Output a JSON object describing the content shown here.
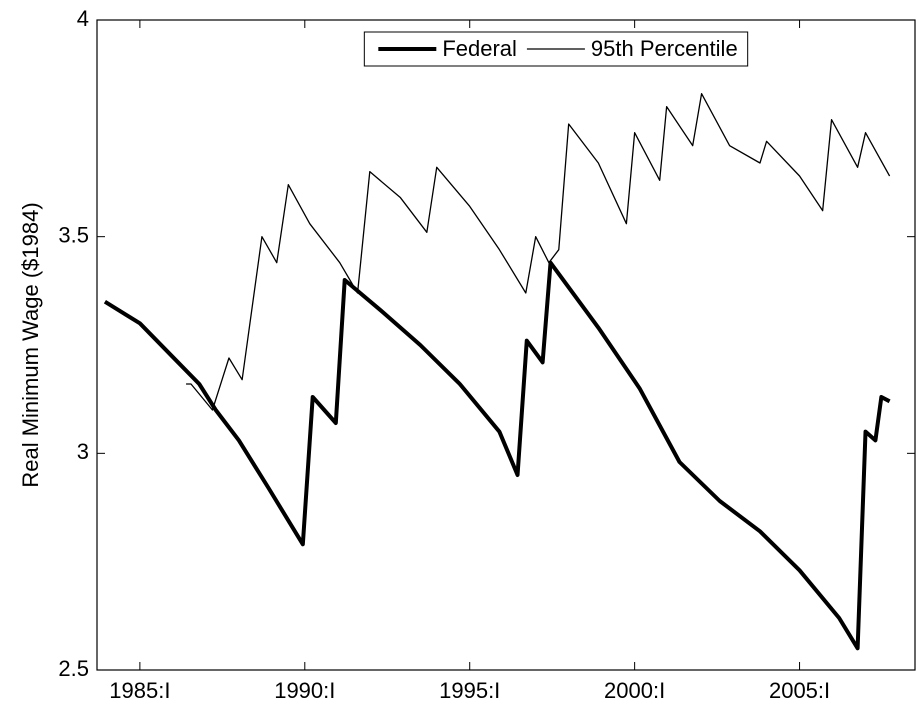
{
  "chart_data": {
    "type": "line",
    "y_label": "Real Minimum Wage ($1984)",
    "xlim": [
      1983.7,
      2008.5
    ],
    "ylim": [
      2.5,
      4
    ],
    "xticks": [
      {
        "value": 1985,
        "label": "1985:I"
      },
      {
        "value": 1990,
        "label": "1990:I"
      },
      {
        "value": 1995,
        "label": "1995:I"
      },
      {
        "value": 2000,
        "label": "2000:I"
      },
      {
        "value": 2005,
        "label": "2005:I"
      }
    ],
    "yticks": [
      2.5,
      3,
      3.5,
      4
    ],
    "grid": false,
    "legend": "top",
    "series": [
      {
        "name": "Federal",
        "color": "#000000",
        "line_width": 4,
        "x": [
          1983.94,
          1985.0,
          1985.9,
          1986.8,
          1987.3,
          1988.0,
          1988.9,
          1989.94,
          1990.24,
          1990.94,
          1991.21,
          1992.3,
          1993.5,
          1994.7,
          1995.9,
          1996.45,
          1996.73,
          1997.21,
          1997.45,
          1998.9,
          2000.15,
          2001.36,
          2002.58,
          2003.8,
          2005.0,
          2006.2,
          2006.76,
          2007.0,
          2007.3,
          2007.48,
          2007.73
        ],
        "values": [
          3.35,
          3.3,
          3.23,
          3.16,
          3.1,
          3.03,
          2.92,
          2.79,
          3.13,
          3.07,
          3.4,
          3.33,
          3.25,
          3.16,
          3.05,
          2.95,
          3.26,
          3.21,
          3.44,
          3.29,
          3.15,
          2.98,
          2.89,
          2.82,
          2.73,
          2.62,
          2.55,
          3.05,
          3.03,
          3.13,
          3.12
        ]
      },
      {
        "name": "95th Percentile",
        "color": "#000000",
        "line_width": 1.3,
        "x": [
          1986.4,
          1986.55,
          1987.2,
          1987.7,
          1988.1,
          1988.7,
          1989.15,
          1989.5,
          1990.15,
          1991.06,
          1991.6,
          1991.97,
          1992.9,
          1993.7,
          1994.0,
          1995.0,
          1995.9,
          1996.7,
          1997.0,
          1997.4,
          1997.7,
          1998.0,
          1998.9,
          1999.75,
          2000.0,
          2000.76,
          2000.97,
          2001.76,
          2002.03,
          2002.88,
          2003.8,
          2004.0,
          2005.0,
          2005.7,
          2005.97,
          2006.76,
          2007.0,
          2007.73
        ],
        "values": [
          3.16,
          3.16,
          3.1,
          3.22,
          3.17,
          3.5,
          3.44,
          3.62,
          3.53,
          3.44,
          3.37,
          3.65,
          3.59,
          3.51,
          3.66,
          3.57,
          3.47,
          3.37,
          3.5,
          3.44,
          3.47,
          3.76,
          3.67,
          3.53,
          3.74,
          3.63,
          3.8,
          3.71,
          3.83,
          3.71,
          3.67,
          3.72,
          3.64,
          3.56,
          3.77,
          3.66,
          3.74,
          3.64
        ]
      }
    ]
  }
}
